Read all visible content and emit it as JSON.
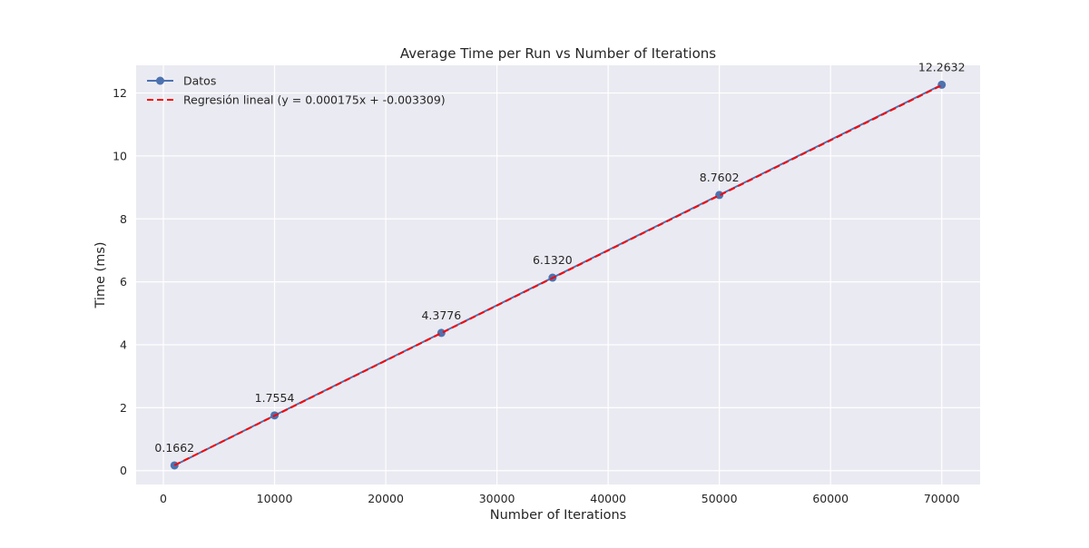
{
  "chart_data": {
    "type": "line",
    "title": "Average Time per Run vs Number of Iterations",
    "xlabel": "Number of Iterations",
    "ylabel": "Time (ms)",
    "xlim": [
      -2450,
      73450
    ],
    "ylim": [
      -0.44,
      12.88
    ],
    "xticks": [
      0,
      10000,
      20000,
      30000,
      40000,
      50000,
      60000,
      70000
    ],
    "xtick_labels": [
      "0",
      "10000",
      "20000",
      "30000",
      "40000",
      "50000",
      "60000",
      "70000"
    ],
    "yticks": [
      0,
      2,
      4,
      6,
      8,
      10,
      12
    ],
    "ytick_labels": [
      "0",
      "2",
      "4",
      "6",
      "8",
      "10",
      "12"
    ],
    "grid": true,
    "legend_position": "top-left",
    "series": [
      {
        "name": "Datos",
        "style": "solid-line-with-circle-markers",
        "color": "#4c72b0",
        "x": [
          1000,
          10000,
          25000,
          35000,
          50000,
          70000
        ],
        "y": [
          0.1662,
          1.7554,
          4.3776,
          6.132,
          8.7602,
          12.2632
        ],
        "labels": [
          "0.1662",
          "1.7554",
          "4.3776",
          "6.1320",
          "8.7602",
          "12.2632"
        ]
      },
      {
        "name": "Regresión lineal (y = 0.000175x + -0.003309)",
        "style": "dashed-line",
        "color": "#ff0000",
        "slope": 0.000175,
        "intercept": -0.003309,
        "x": [
          1000,
          70000
        ]
      }
    ],
    "colors": {
      "plot_background": "#eaeaf2",
      "grid": "#ffffff",
      "text": "#262626"
    }
  }
}
